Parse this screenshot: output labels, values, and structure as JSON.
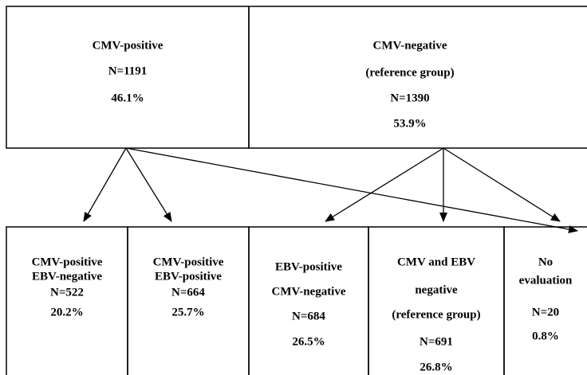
{
  "nodes": [
    {
      "lines": [
        "CMV-positive",
        "N=1191",
        "46.1%"
      ]
    },
    {
      "lines": [
        "CMV-negative",
        "(reference group)",
        "N=1390",
        "53.9%"
      ]
    },
    {
      "lines": [
        "CMV-positive",
        "EBV-negative",
        "N=522",
        "20.2%"
      ]
    },
    {
      "lines": [
        "CMV-positive",
        "EBV-positive",
        "N=664",
        "25.7%"
      ]
    },
    {
      "lines": [
        "EBV-positive",
        "CMV-negative",
        "N=684",
        "26.5%"
      ]
    },
    {
      "lines": [
        "CMV and EBV",
        "negative",
        "(reference group)",
        "N=691",
        "26.8%"
      ]
    },
    {
      "lines": [
        "No",
        "evaluation",
        "N=20",
        "0.8%"
      ]
    }
  ]
}
